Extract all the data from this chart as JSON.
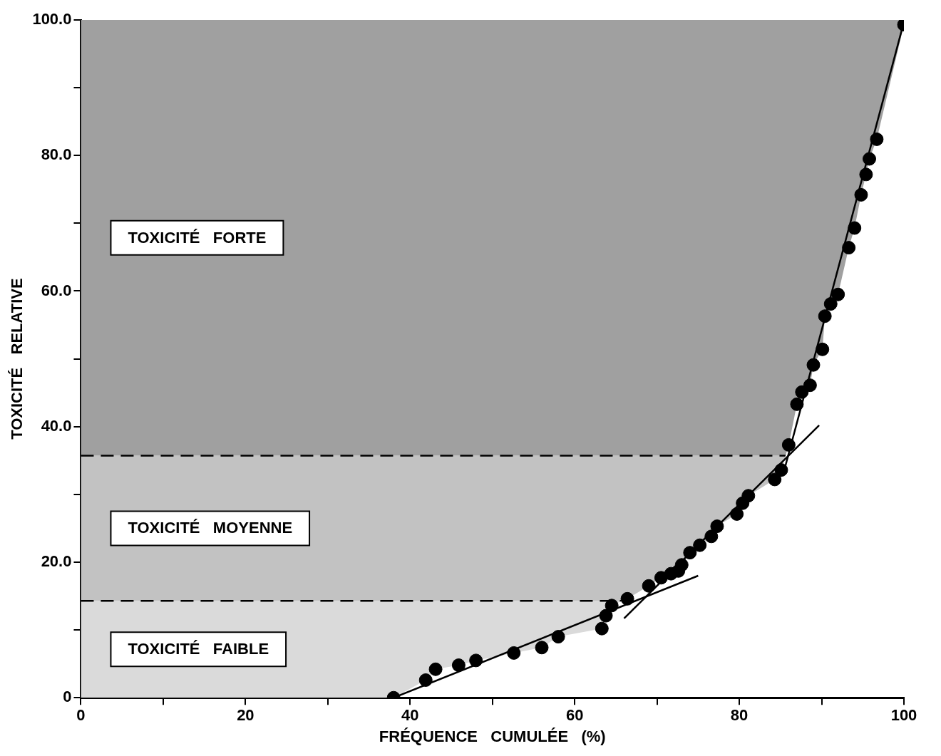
{
  "chart_data": {
    "type": "scatter",
    "xlabel": "FRÉQUENCE   CUMULÉE   (%)",
    "ylabel": "TOXICITÉ   RELATIVE",
    "xlim": [
      0,
      100
    ],
    "ylim": [
      0,
      100
    ],
    "xticks": [
      0,
      {
        "value": 10,
        "label": null
      },
      20,
      {
        "value": 30,
        "label": null
      },
      40,
      {
        "value": 50,
        "label": null
      },
      60,
      {
        "value": 70,
        "label": null
      },
      80,
      {
        "value": 90,
        "label": null
      },
      100
    ],
    "yticks": [
      0,
      {
        "value": 10,
        "label": null
      },
      {
        "value": 20,
        "label": "20.0"
      },
      {
        "value": 30,
        "label": null
      },
      {
        "value": 40,
        "label": "40.0"
      },
      {
        "value": 50,
        "label": null
      },
      {
        "value": 60,
        "label": "60.0"
      },
      {
        "value": 70,
        "label": null
      },
      {
        "value": 80,
        "label": "80.0"
      },
      {
        "value": 90,
        "label": null
      },
      {
        "value": 100,
        "label": "100.0"
      }
    ],
    "grid": false,
    "legend": false,
    "series": [
      {
        "marker": "circle",
        "color": "#000000",
        "x": [
          38,
          41.9,
          43.1,
          45.9,
          48,
          52.6,
          56,
          58,
          63.3,
          63.8,
          64.5,
          66.4,
          69,
          70.5,
          71.7,
          72.6,
          73,
          74,
          75.2,
          76.6,
          77.3,
          79.7,
          80.4,
          81.1,
          84.3,
          85.1,
          86,
          87,
          87.6,
          88.6,
          89,
          90.1,
          90.4,
          91.1,
          92,
          93.3,
          94,
          94.8,
          95.4,
          95.8,
          96.7,
          100
        ],
        "values": [
          0,
          2.6,
          4.2,
          4.8,
          5.5,
          6.6,
          7.4,
          9,
          10.2,
          12.1,
          13.6,
          14.6,
          16.5,
          17.7,
          18.3,
          18.7,
          19.6,
          21.4,
          22.5,
          23.8,
          25.3,
          27.1,
          28.7,
          29.8,
          32.2,
          33.6,
          37.3,
          43.3,
          45.1,
          46.1,
          49.1,
          51.4,
          56.3,
          58.1,
          59.5,
          66.4,
          69.3,
          74.2,
          77.2,
          79.5,
          82.4,
          99.3
        ]
      },
      {
        "type": "line",
        "marker": "none",
        "color": "#000000",
        "x": [
          38,
          75
        ],
        "values": [
          0,
          18
        ]
      },
      {
        "type": "line",
        "marker": "none",
        "color": "#000000",
        "x": [
          66,
          89.7
        ],
        "values": [
          11.7,
          40.2
        ]
      },
      {
        "type": "line",
        "marker": "none",
        "color": "#000000",
        "x": [
          85.4,
          100
        ],
        "values": [
          33.3,
          99.7
        ]
      }
    ],
    "bands": [
      {
        "axis": "y",
        "from": 0,
        "to": 14.3,
        "label": "TOXICITÉ   FAIBLE",
        "color": "#dadada"
      },
      {
        "axis": "y",
        "from": 14.3,
        "to": 35.7,
        "label": "TOXICITÉ   MOYENNE",
        "color": "#c2c2c2"
      },
      {
        "axis": "y",
        "from": 35.7,
        "to": 100,
        "label": "TOXICITÉ   FORTE",
        "color": "#a0a0a0"
      }
    ],
    "ref_lines": [
      {
        "axis": "y",
        "value": 35.7,
        "color": "#000000",
        "line_style": "dashed"
      },
      {
        "axis": "y",
        "value": 14.3,
        "color": "#000000",
        "line_style": "dashed"
      }
    ]
  }
}
